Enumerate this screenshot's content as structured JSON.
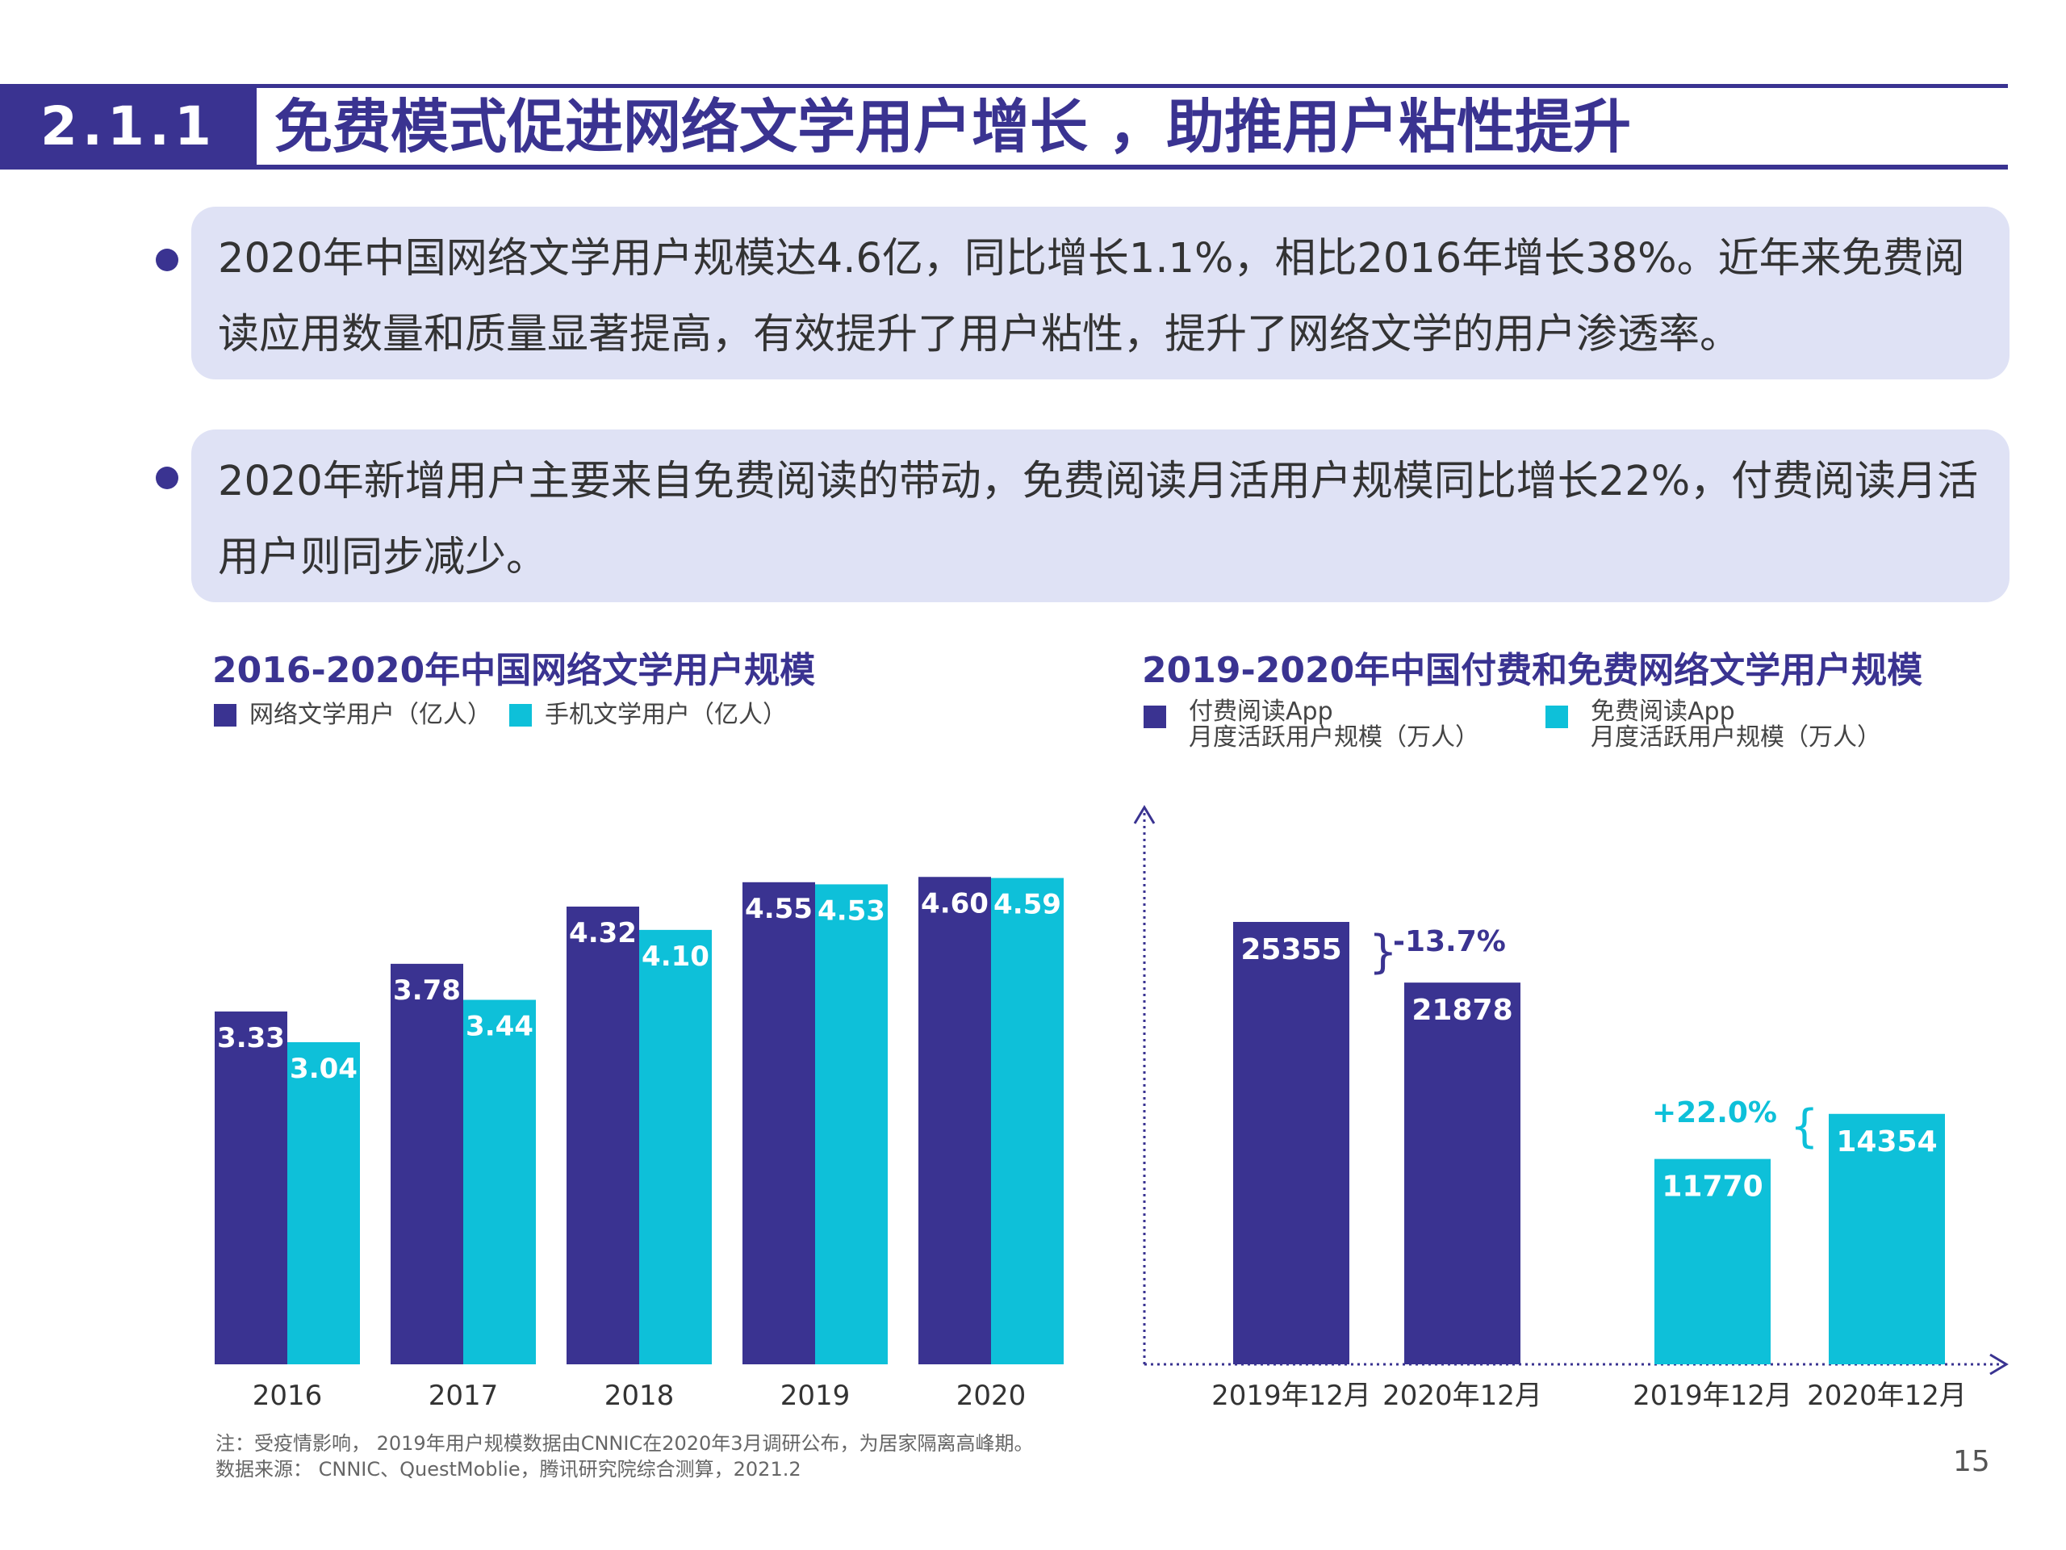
{
  "header": {
    "section_number": "2.1.1",
    "title": "免费模式促进网络文学用户增长 ，助推用户粘性提升"
  },
  "bullets": [
    "2020年中国网络文学用户规模达4.6亿，同比增长1.1%，相比2016年增长38%。近年来免费阅读应用数量和质量显著提高，有效提升了用户粘性，提升了网络文学的用户渗透率。",
    "2020年新增用户主要来自免费阅读的带动，免费阅读月活用户规模同比增长22%，付费阅读月活用户则同步减少。"
  ],
  "colors": {
    "primary": "#3a3391",
    "secondary": "#0ec0d9",
    "box_bg": "#dfe2f5"
  },
  "chart_data": [
    {
      "type": "bar",
      "title": "2016-2020年中国网络文学用户规模",
      "categories": [
        "2016",
        "2017",
        "2018",
        "2019",
        "2020"
      ],
      "series": [
        {
          "name": "网络文学用户（亿人）",
          "values": [
            3.33,
            3.78,
            4.32,
            4.55,
            4.6
          ],
          "labels": [
            "3.33",
            "3.78",
            "4.32",
            "4.55",
            "4.60"
          ],
          "color": "#3a3391"
        },
        {
          "name": "手机文学用户（亿人）",
          "values": [
            3.04,
            3.44,
            4.1,
            4.53,
            4.59
          ],
          "labels": [
            "3.04",
            "3.44",
            "4.10",
            "4.53",
            "4.59"
          ],
          "color": "#0ec0d9"
        }
      ],
      "ylim": [
        0,
        4.8
      ]
    },
    {
      "type": "bar",
      "title": "2019-2020年中国付费和免费网络文学用户规模",
      "series": [
        {
          "name": "付费阅读App\n月度活跃用户规模（万人）",
          "name_lines": [
            "付费阅读App",
            "月度活跃用户规模（万人）"
          ],
          "categories": [
            "2019年12月",
            "2020年12月"
          ],
          "values": [
            25355,
            21878
          ],
          "labels": [
            "25355",
            "21878"
          ],
          "color": "#3a3391",
          "change": "-13.7%"
        },
        {
          "name": "免费阅读App\n月度活跃用户规模（万人）",
          "name_lines": [
            "免费阅读App",
            "月度活跃用户规模（万人）"
          ],
          "categories": [
            "2019年12月",
            "2020年12月"
          ],
          "values": [
            11770,
            14354
          ],
          "labels": [
            "11770",
            "14354"
          ],
          "color": "#0ec0d9",
          "change": "+22.0%"
        }
      ],
      "ylim": [
        0,
        31000
      ]
    }
  ],
  "footer": {
    "note": "注：受疫情影响， 2019年用户规模数据由CNNIC在2020年3月调研公布，为居家隔离高峰期。",
    "source": "数据来源： CNNIC、QuestMoblie，腾讯研究院综合测算，2021.2",
    "page_number": "15"
  }
}
